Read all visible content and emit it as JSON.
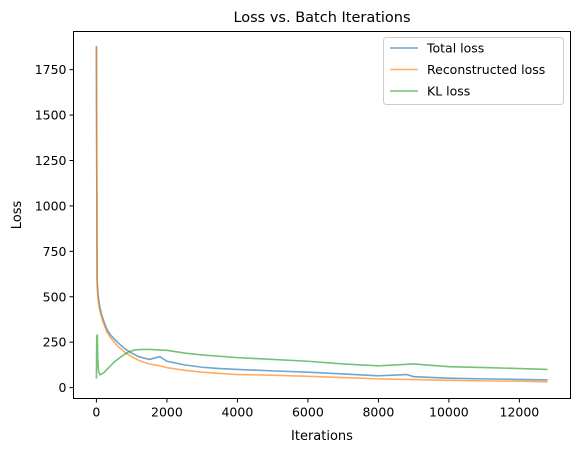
{
  "chart_data": {
    "type": "line",
    "title": "Loss vs. Batch Iterations",
    "xlabel": "Iterations",
    "ylabel": "Loss",
    "xlim": [
      -650,
      13450
    ],
    "ylim": [
      -60,
      1960
    ],
    "xticks": [
      0,
      2000,
      4000,
      6000,
      8000,
      10000,
      12000
    ],
    "yticks": [
      0,
      250,
      500,
      750,
      1000,
      1250,
      1500,
      1750
    ],
    "grid": false,
    "legend_position": "top-right",
    "series": [
      {
        "name": "Total loss",
        "color": "#1f77b4",
        "x": [
          0,
          10,
          20,
          40,
          60,
          100,
          150,
          200,
          300,
          400,
          600,
          800,
          1000,
          1200,
          1500,
          1800,
          2000,
          2500,
          3000,
          3500,
          4000,
          5000,
          6000,
          7000,
          8000,
          8800,
          9000,
          10000,
          11000,
          12000,
          12800
        ],
        "y": [
          1880,
          1200,
          600,
          530,
          490,
          440,
          400,
          370,
          320,
          290,
          250,
          215,
          190,
          170,
          155,
          170,
          145,
          125,
          112,
          105,
          100,
          92,
          85,
          75,
          65,
          72,
          60,
          52,
          48,
          45,
          42
        ]
      },
      {
        "name": "Reconstructed loss",
        "color": "#ff7f0e",
        "x": [
          0,
          10,
          20,
          40,
          60,
          100,
          150,
          200,
          300,
          400,
          600,
          800,
          1000,
          1200,
          1500,
          1800,
          2000,
          2500,
          3000,
          3500,
          4000,
          5000,
          6000,
          7000,
          8000,
          9000,
          10000,
          11000,
          12000,
          12800
        ],
        "y": [
          1870,
          1150,
          560,
          500,
          465,
          420,
          385,
          355,
          305,
          275,
          230,
          195,
          170,
          150,
          130,
          120,
          110,
          95,
          85,
          78,
          72,
          68,
          62,
          55,
          48,
          44,
          40,
          37,
          35,
          32
        ]
      },
      {
        "name": "KL loss",
        "color": "#2ca02c",
        "x": [
          0,
          10,
          25,
          40,
          60,
          100,
          150,
          200,
          300,
          500,
          700,
          900,
          1100,
          1300,
          1500,
          2000,
          2500,
          3000,
          4000,
          5000,
          6000,
          7000,
          8000,
          9000,
          10000,
          11000,
          12000,
          12800
        ],
        "y": [
          50,
          280,
          290,
          150,
          90,
          70,
          75,
          80,
          100,
          140,
          170,
          195,
          208,
          210,
          210,
          205,
          190,
          180,
          165,
          155,
          145,
          130,
          120,
          130,
          115,
          110,
          105,
          100
        ]
      }
    ]
  }
}
